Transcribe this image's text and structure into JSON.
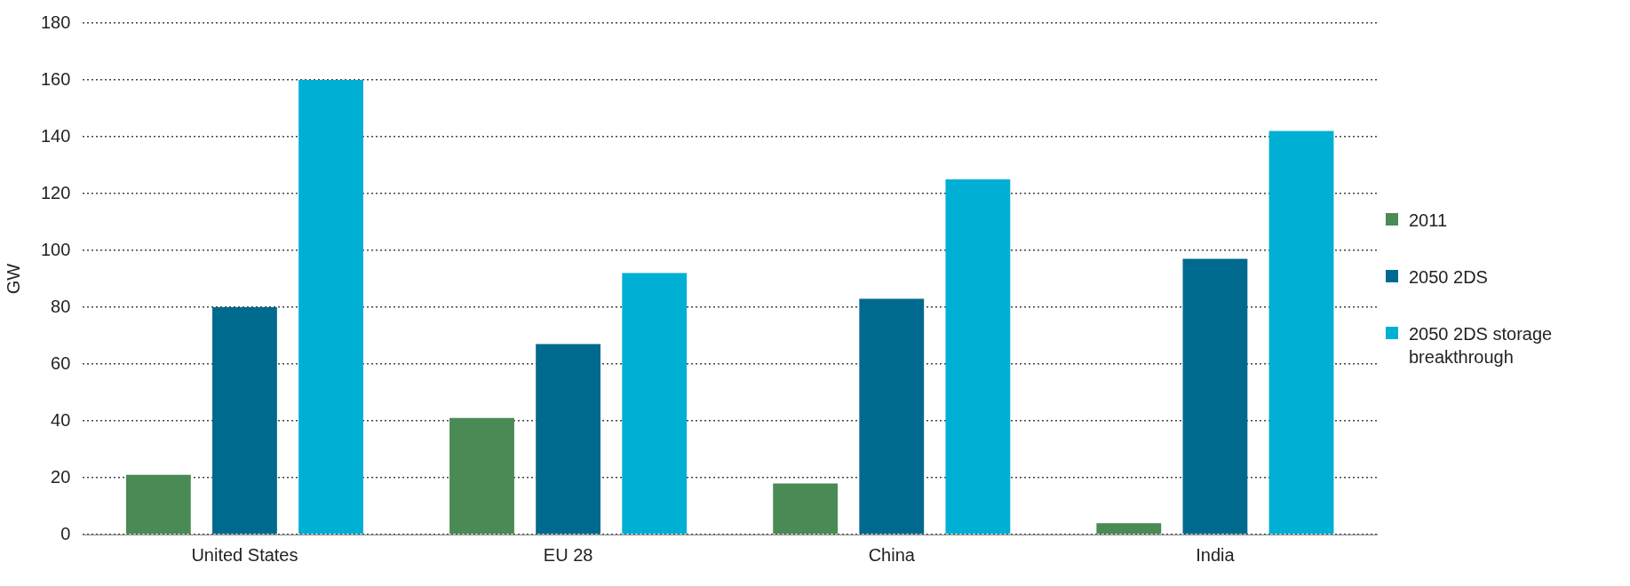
{
  "chart_data": {
    "type": "bar",
    "ylabel": "GW",
    "categories": [
      "United States",
      "EU 28",
      "China",
      "India"
    ],
    "series": [
      {
        "name": "2011",
        "color": "#4a8a55",
        "values": [
          21,
          41,
          18,
          4
        ]
      },
      {
        "name": "2050 2DS",
        "color": "#006a8e",
        "values": [
          80,
          67,
          83,
          97
        ]
      },
      {
        "name": "2050 2DS storage breakthrough",
        "color": "#00b0d4",
        "values": [
          160,
          92,
          125,
          142
        ]
      }
    ],
    "ylim": [
      0,
      180
    ],
    "yticks": [
      0,
      20,
      40,
      60,
      80,
      100,
      120,
      140,
      160,
      180
    ],
    "grid": "y",
    "legend": "right",
    "line_style": "dotted"
  }
}
